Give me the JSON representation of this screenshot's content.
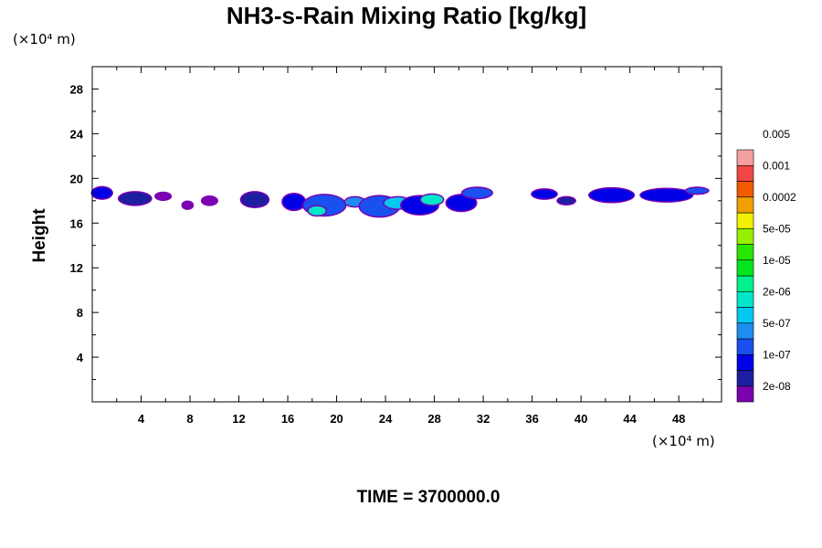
{
  "chart_data": {
    "type": "heatmap",
    "title": "NH3-s-Rain Mixing Ratio [kg/kg]",
    "ylabel": "Height",
    "y_unit": "(×10⁴ m)",
    "x_unit": "(×10⁴ m)",
    "time_label": "TIME = 3700000.0",
    "xlim": [
      0,
      51.5
    ],
    "ylim": [
      0,
      30
    ],
    "x_ticks": [
      "4",
      "8",
      "12",
      "16",
      "20",
      "24",
      "28",
      "32",
      "36",
      "40",
      "44",
      "48"
    ],
    "y_ticks": [
      "4",
      "8",
      "12",
      "16",
      "20",
      "24",
      "28"
    ],
    "colorbar": {
      "colors": [
        "#7a00b0",
        "#1e1ea0",
        "#0000e6",
        "#1a50f0",
        "#1e8cf0",
        "#00c8f0",
        "#00e6c8",
        "#00f08c",
        "#00e61e",
        "#28e600",
        "#96f000",
        "#f0f000",
        "#f0a000",
        "#f05a00",
        "#f04646",
        "#f5a0a0"
      ],
      "labels": [
        "2e-08",
        "1e-07",
        "5e-07",
        "2e-06",
        "1e-05",
        "5e-05",
        "0.0002",
        "0.001",
        "0.005"
      ]
    },
    "fields": [
      {
        "x": 0.8,
        "y": 18.7,
        "w": 1.6,
        "h": 1.0,
        "level": 2
      },
      {
        "x": 3.5,
        "y": 18.2,
        "w": 2.6,
        "h": 1.1,
        "level": 1
      },
      {
        "x": 5.8,
        "y": 18.4,
        "w": 1.2,
        "h": 0.6,
        "level": 0
      },
      {
        "x": 7.8,
        "y": 17.6,
        "w": 0.8,
        "h": 0.6,
        "level": 0
      },
      {
        "x": 9.6,
        "y": 18.0,
        "w": 1.2,
        "h": 0.7,
        "level": 0
      },
      {
        "x": 13.3,
        "y": 18.1,
        "w": 2.2,
        "h": 1.3,
        "level": 1
      },
      {
        "x": 16.5,
        "y": 17.9,
        "w": 1.8,
        "h": 1.4,
        "level": 2
      },
      {
        "x": 19.0,
        "y": 17.6,
        "w": 3.4,
        "h": 1.8,
        "level": 3
      },
      {
        "x": 18.4,
        "y": 17.1,
        "w": 1.4,
        "h": 0.8,
        "level": 6
      },
      {
        "x": 21.5,
        "y": 17.9,
        "w": 1.6,
        "h": 0.8,
        "level": 4
      },
      {
        "x": 23.5,
        "y": 17.5,
        "w": 3.2,
        "h": 1.8,
        "level": 3
      },
      {
        "x": 25.0,
        "y": 17.8,
        "w": 2.2,
        "h": 1.0,
        "level": 5
      },
      {
        "x": 26.8,
        "y": 17.6,
        "w": 3.0,
        "h": 1.6,
        "level": 2
      },
      {
        "x": 27.8,
        "y": 18.1,
        "w": 1.8,
        "h": 0.9,
        "level": 6
      },
      {
        "x": 30.2,
        "y": 17.8,
        "w": 2.4,
        "h": 1.4,
        "level": 2
      },
      {
        "x": 31.5,
        "y": 18.7,
        "w": 2.4,
        "h": 0.9,
        "level": 3
      },
      {
        "x": 37.0,
        "y": 18.6,
        "w": 2.0,
        "h": 0.8,
        "level": 2
      },
      {
        "x": 38.8,
        "y": 18.0,
        "w": 1.4,
        "h": 0.6,
        "level": 1
      },
      {
        "x": 42.5,
        "y": 18.5,
        "w": 3.6,
        "h": 1.2,
        "level": 2
      },
      {
        "x": 47.0,
        "y": 18.5,
        "w": 4.2,
        "h": 1.1,
        "level": 2
      },
      {
        "x": 49.5,
        "y": 18.9,
        "w": 1.8,
        "h": 0.5,
        "level": 3
      }
    ]
  }
}
